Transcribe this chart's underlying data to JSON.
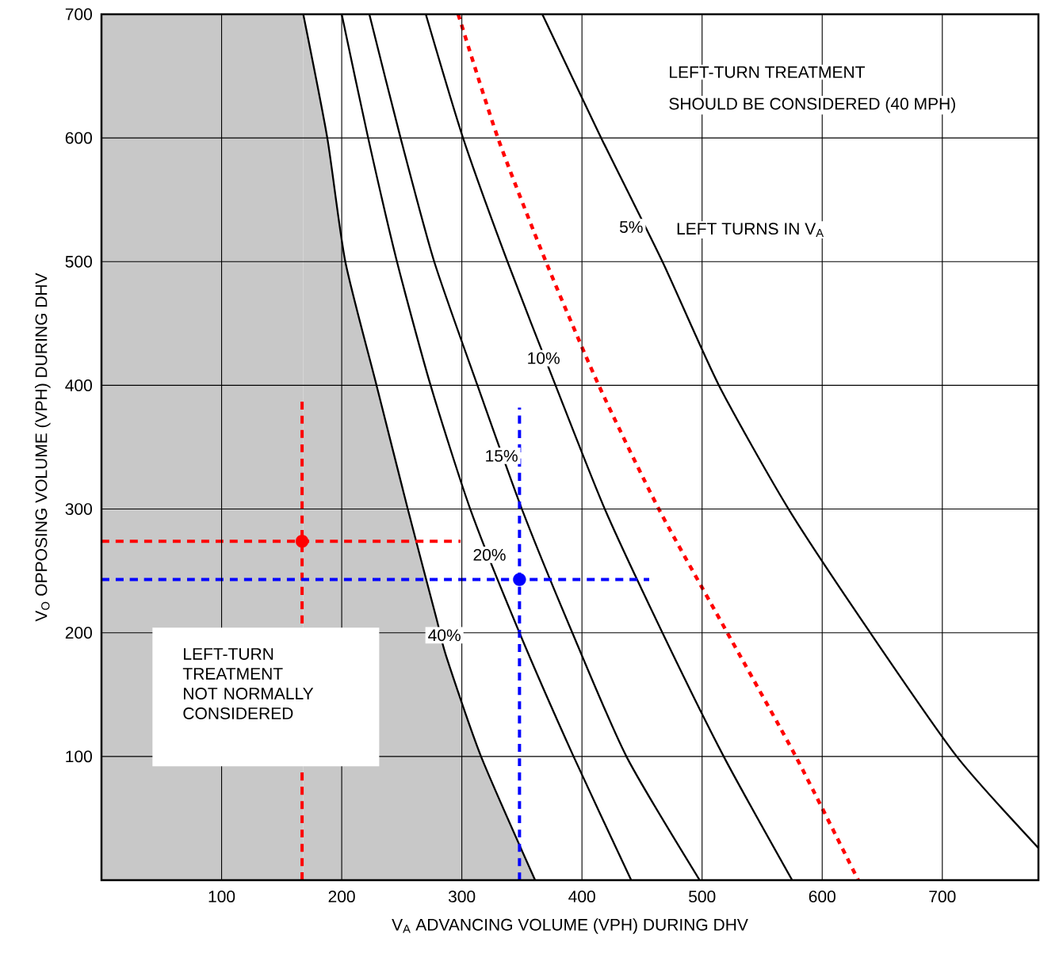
{
  "chart_data": {
    "type": "line",
    "xlabel": "V$_{A}$ ADVANCING VOLUME (VPH) DURING DHV",
    "ylabel": "V$_{O}$ OPPOSING VOLUME (VPH) DURING DHV",
    "xlim": [
      0,
      780
    ],
    "ylim": [
      0,
      700
    ],
    "xticks": [
      100,
      200,
      300,
      400,
      500,
      600,
      700
    ],
    "yticks": [
      100,
      200,
      300,
      400,
      500,
      600,
      700
    ],
    "grid": true,
    "marker": "none",
    "line_style": "solid",
    "bands": [
      {
        "axis": "x",
        "from": 0,
        "to": 168,
        "color": "#c8c8c8"
      }
    ],
    "annotations": [
      "LEFT-TURN TREATMENT",
      "SHOULD BE CONSIDERED (40 MPH)",
      "LEFT TURNS IN V$_{A}$",
      "LEFT-TURN TREATMENT NOT NORMALLY CONSIDERED"
    ],
    "series": [
      {
        "name": "40%",
        "type": "area",
        "color": "#c8c8c8",
        "x": [
          168,
          188,
          203,
          229,
          255,
          279,
          287,
          316,
          361
        ],
        "values": [
          700,
          600,
          500,
          400,
          300,
          211,
          181,
          100,
          0
        ]
      },
      {
        "name": "20%",
        "color": "#000000",
        "x": [
          200,
          222,
          246,
          274,
          307,
          348,
          393,
          441
        ],
        "values": [
          700,
          600,
          500,
          400,
          300,
          200,
          100,
          0
        ]
      },
      {
        "name": "15%",
        "color": "#000000",
        "x": [
          223,
          249,
          277,
          313,
          350,
          392,
          437,
          498
        ],
        "values": [
          700,
          600,
          500,
          400,
          300,
          200,
          100,
          0
        ]
      },
      {
        "name": "10%",
        "color": "#000000",
        "x": [
          270,
          301,
          338,
          378,
          419,
          467,
          518,
          575
        ],
        "values": [
          700,
          600,
          500,
          400,
          300,
          200,
          100,
          0
        ]
      },
      {
        "name": "5%",
        "color": "#000000",
        "x": [
          367,
          416,
          467,
          514,
          572,
          640,
          712,
          780
        ],
        "values": [
          700,
          600,
          500,
          400,
          300,
          200,
          100,
          26
        ]
      },
      {
        "color": "#ff0000",
        "line_style": "dotted",
        "x": [
          297,
          330,
          370,
          414,
          464,
          521,
          578,
          630
        ],
        "values": [
          700,
          600,
          500,
          400,
          300,
          200,
          100,
          0
        ]
      },
      {
        "color": "#ff0000",
        "line_style": "dashed",
        "x": [
          0,
          299
        ],
        "values": [
          274,
          274
        ]
      },
      {
        "color": "#ff0000",
        "line_style": "dashed",
        "x": [
          167,
          167
        ],
        "values": [
          0,
          388
        ]
      },
      {
        "color": "#0000ff",
        "line_style": "dashed",
        "x": [
          0,
          456
        ],
        "values": [
          243,
          243
        ]
      },
      {
        "color": "#0000ff",
        "line_style": "dashed",
        "x": [
          348,
          348
        ],
        "values": [
          0,
          382
        ]
      },
      {
        "type": "scatter",
        "marker": "circle",
        "color": "#ff0000",
        "x": [
          167
        ],
        "values": [
          274
        ]
      },
      {
        "type": "scatter",
        "marker": "circle",
        "color": "#0000ff",
        "x": [
          348
        ],
        "values": [
          243
        ]
      }
    ]
  }
}
